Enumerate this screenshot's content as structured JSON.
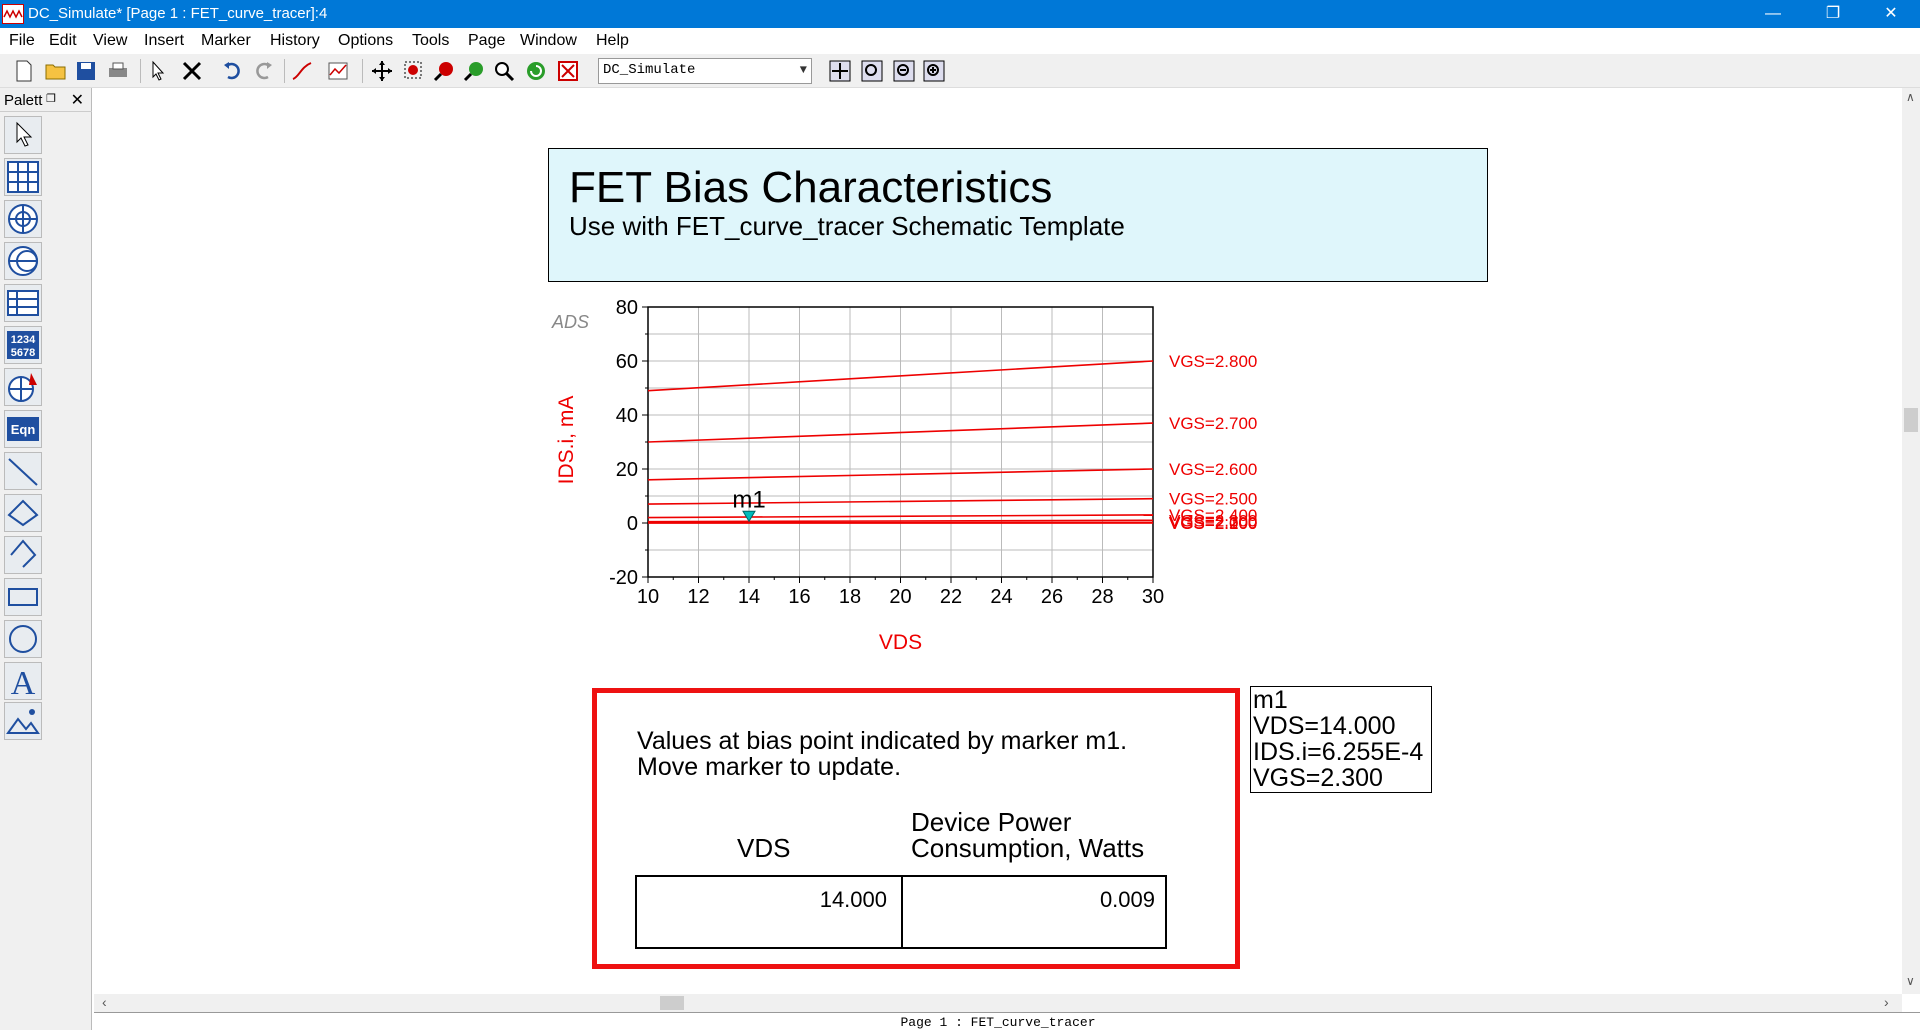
{
  "window": {
    "title": "DC_Simulate* [Page 1 : FET_curve_tracer]:4",
    "minimize": "—",
    "restore": "❐",
    "close": "✕"
  },
  "menu": [
    "File",
    "Edit",
    "View",
    "Insert",
    "Marker",
    "History",
    "Options",
    "Tools",
    "Page",
    "Window",
    "Help"
  ],
  "toolbar": {
    "page_select_value": "DC_Simulate",
    "icons": [
      "new-icon",
      "open-icon",
      "save-icon",
      "print-icon",
      "select-icon",
      "delete-icon",
      "undo-icon",
      "redo-icon",
      "trace-icon",
      "plot-icon",
      "pan-icon",
      "zoom-area-icon",
      "zoom-in-icon",
      "zoom-out-icon",
      "zoom-icon",
      "refresh-icon",
      "stop-icon",
      "view-all-icon",
      "zoom-fit-icon",
      "zoom-prev-icon",
      "zoom-next-icon"
    ]
  },
  "palette": {
    "title": "Palett",
    "close": "✕",
    "dock": "❐",
    "items": [
      "pointer-icon",
      "rectangular-plot-icon",
      "polar-plot-icon",
      "smith-chart-icon",
      "list-icon",
      "stack-icon",
      "antenna-plot-icon",
      "equation-icon",
      "line-icon",
      "polyline-icon",
      "polygon-icon",
      "rectangle-icon",
      "circle-icon",
      "text-icon",
      "image-icon"
    ],
    "numbers_label_1": "1234",
    "numbers_label_2": "5678",
    "eqn_label": "Eqn",
    "text_label": "A"
  },
  "document": {
    "title": "FET Bias Characteristics",
    "subtitle": "Use with FET_curve_tracer Schematic Template",
    "logo": "ADS"
  },
  "chart_data": {
    "type": "line",
    "xlabel": "VDS",
    "ylabel": "IDS.i, mA",
    "xlim": [
      10,
      30
    ],
    "ylim": [
      -20,
      80
    ],
    "x_ticks": [
      10,
      12,
      14,
      16,
      18,
      20,
      22,
      24,
      26,
      28,
      30
    ],
    "y_ticks": [
      -20,
      0,
      20,
      40,
      60,
      80
    ],
    "grid": true,
    "series": [
      {
        "name": "VGS=2.800",
        "x": [
          10,
          30
        ],
        "y": [
          49,
          60
        ]
      },
      {
        "name": "VGS=2.700",
        "x": [
          10,
          30
        ],
        "y": [
          30,
          37
        ]
      },
      {
        "name": "VGS=2.600",
        "x": [
          10,
          30
        ],
        "y": [
          16,
          20
        ]
      },
      {
        "name": "VGS=2.500",
        "x": [
          10,
          30
        ],
        "y": [
          7,
          9
        ]
      },
      {
        "name": "VGS=2.400",
        "x": [
          10,
          30
        ],
        "y": [
          2,
          3
        ]
      },
      {
        "name": "VGS=2.300",
        "x": [
          10,
          30
        ],
        "y": [
          0.5,
          1
        ]
      },
      {
        "name": "VGS=2.200",
        "x": [
          10,
          30
        ],
        "y": [
          0.1,
          0.2
        ]
      },
      {
        "name": "VGS=2.100",
        "x": [
          10,
          30
        ],
        "y": [
          0,
          0.05
        ]
      },
      {
        "name": "VGS=2.000",
        "x": [
          10,
          30
        ],
        "y": [
          0,
          0
        ]
      }
    ],
    "marker": {
      "name": "m1",
      "x": 14,
      "y": 0.6255
    }
  },
  "marker_readout": {
    "name": "m1",
    "vds": "VDS=14.000",
    "ids": "IDS.i=6.255E-4",
    "vgs": "VGS=2.300"
  },
  "info": {
    "line1": "Values at bias point indicated by marker m1.",
    "line2": "Move marker to update.",
    "col1_header": "VDS",
    "col2_header_1": "Device Power",
    "col2_header_2": "Consumption, Watts",
    "vds_value": "14.000",
    "power_value": "0.009"
  },
  "status": "Page 1 : FET_curve_tracer",
  "colors": {
    "trace": "#ee0000",
    "accent": "#0078d7",
    "marker": "#00bbbb"
  }
}
